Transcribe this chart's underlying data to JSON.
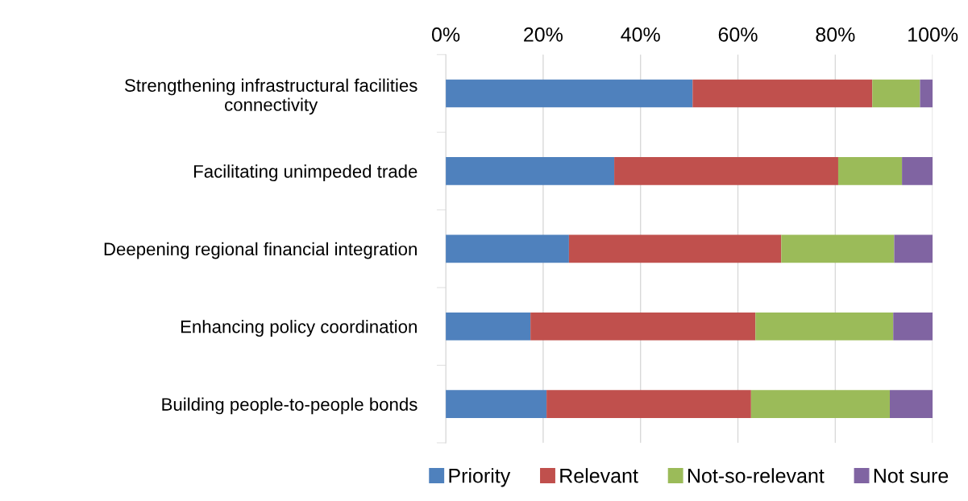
{
  "chart_data": {
    "type": "bar",
    "orientation": "horizontal",
    "stacked": true,
    "categories": [
      "Strengthening infrastructural facilities\nconnectivity",
      "Facilitating unimpeded trade",
      "Deepening regional financial integration",
      "Enhancing policy coordination",
      "Building people-to-people bonds"
    ],
    "series": [
      {
        "name": "Priority",
        "color": "#4f81bd",
        "values": [
          50.7,
          34.6,
          25.3,
          17.4,
          20.7
        ]
      },
      {
        "name": "Relevant",
        "color": "#c0504d",
        "values": [
          36.9,
          46.0,
          43.6,
          46.2,
          42.0
        ]
      },
      {
        "name": "Not-so-relevant",
        "color": "#9bbb59",
        "values": [
          9.8,
          13.1,
          23.2,
          28.3,
          28.5
        ]
      },
      {
        "name": "Not sure",
        "color": "#8064a2",
        "values": [
          2.6,
          6.3,
          7.9,
          8.1,
          8.8
        ]
      }
    ],
    "xlim": [
      0,
      100
    ],
    "xticks": [
      {
        "value": 0,
        "label": "0%"
      },
      {
        "value": 20,
        "label": "20%"
      },
      {
        "value": 40,
        "label": "40%"
      },
      {
        "value": 60,
        "label": "60%"
      },
      {
        "value": 80,
        "label": "80%"
      },
      {
        "value": 100,
        "label": "100%"
      }
    ],
    "grid": "x",
    "legend": "bottom"
  }
}
